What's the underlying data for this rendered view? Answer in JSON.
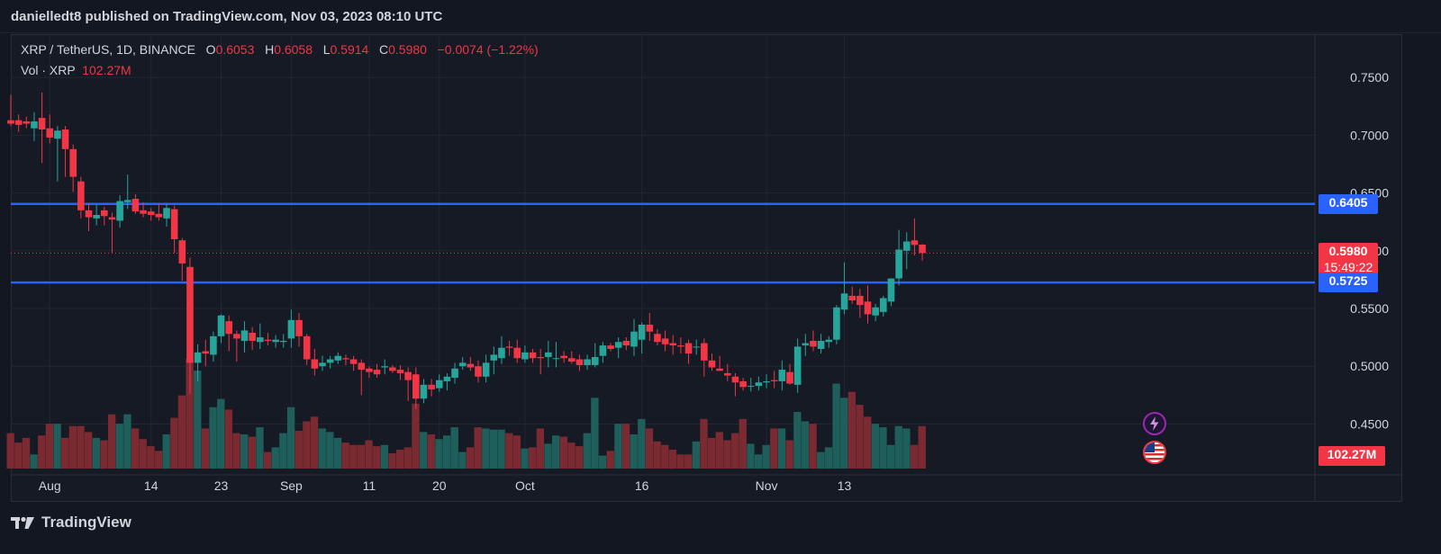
{
  "header": {
    "publish_text": "danielledt8 published on TradingView.com, Nov 03, 2023 08:10 UTC"
  },
  "legend": {
    "symbol": "XRP / TetherUS, 1D, BINANCE",
    "o_label": "O",
    "o_value": "0.6053",
    "h_label": "H",
    "h_value": "0.6058",
    "l_label": "L",
    "l_value": "0.5914",
    "c_label": "C",
    "c_value": "0.5980",
    "change": "−0.0074 (−1.22%)",
    "vol_label": "Vol · XRP",
    "vol_value": "102.27M"
  },
  "price_tags": {
    "resistance": "0.6405",
    "current_price": "0.5980",
    "countdown": "15:49:22",
    "support": "0.5725",
    "volume": "102.27M"
  },
  "footer": {
    "brand": "TradingView"
  },
  "icons": [
    "tradingview-logo-icon",
    "lightning-icon",
    "us-flag-icon"
  ],
  "colors": {
    "up": "#26a69a",
    "down": "#f23645",
    "level_line": "#2962ff",
    "up_volume": "#1f5f5b",
    "down_volume": "#7a2a30",
    "background": "#161a25"
  },
  "chart_data": {
    "type": "candlestick",
    "symbol": "XRP / TetherUS",
    "interval": "1D",
    "exchange": "BINANCE",
    "y_ticks": [
      "0.7500",
      "0.7000",
      "0.6500",
      "0.6000",
      "0.5500",
      "0.5000",
      "0.4500"
    ],
    "y_tick_values": [
      0.75,
      0.7,
      0.65,
      0.6,
      0.55,
      0.5,
      0.45
    ],
    "ylim": [
      0.4122,
      0.7875
    ],
    "x_ticks": [
      "Aug",
      "14",
      "23",
      "Sep",
      "11",
      "20",
      "Oct",
      "16",
      "Nov",
      "13"
    ],
    "x_tick_index": [
      5,
      18,
      27,
      36,
      46,
      55,
      66,
      81,
      97,
      107
    ],
    "levels": [
      {
        "price": 0.6405,
        "label": "0.6405"
      },
      {
        "price": 0.5725,
        "label": "0.5725"
      }
    ],
    "last_close": 0.598,
    "candles": [
      {
        "date": "2023-07-28",
        "o": 0.713,
        "h": 0.735,
        "l": 0.708,
        "c": 0.71,
        "v": 30
      },
      {
        "date": "2023-07-29",
        "o": 0.713,
        "h": 0.718,
        "l": 0.703,
        "c": 0.709,
        "v": 22
      },
      {
        "date": "2023-07-30",
        "o": 0.712,
        "h": 0.716,
        "l": 0.706,
        "c": 0.71,
        "v": 26
      },
      {
        "date": "2023-07-31",
        "o": 0.706,
        "h": 0.72,
        "l": 0.695,
        "c": 0.712,
        "v": 12
      },
      {
        "date": "2023-08-01",
        "o": 0.715,
        "h": 0.737,
        "l": 0.676,
        "c": 0.705,
        "v": 28
      },
      {
        "date": "2023-08-02",
        "o": 0.706,
        "h": 0.718,
        "l": 0.693,
        "c": 0.698,
        "v": 38
      },
      {
        "date": "2023-08-03",
        "o": 0.697,
        "h": 0.708,
        "l": 0.66,
        "c": 0.704,
        "v": 38
      },
      {
        "date": "2023-08-04",
        "o": 0.705,
        "h": 0.708,
        "l": 0.664,
        "c": 0.688,
        "v": 26
      },
      {
        "date": "2023-08-05",
        "o": 0.688,
        "h": 0.692,
        "l": 0.651,
        "c": 0.664,
        "v": 36
      },
      {
        "date": "2023-08-06",
        "o": 0.66,
        "h": 0.664,
        "l": 0.628,
        "c": 0.635,
        "v": 36
      },
      {
        "date": "2023-08-07",
        "o": 0.635,
        "h": 0.641,
        "l": 0.617,
        "c": 0.629,
        "v": 31
      },
      {
        "date": "2023-08-08",
        "o": 0.628,
        "h": 0.64,
        "l": 0.622,
        "c": 0.631,
        "v": 26
      },
      {
        "date": "2023-08-09",
        "o": 0.635,
        "h": 0.638,
        "l": 0.622,
        "c": 0.63,
        "v": 24
      },
      {
        "date": "2023-08-10",
        "o": 0.629,
        "h": 0.633,
        "l": 0.598,
        "c": 0.627,
        "v": 46
      },
      {
        "date": "2023-08-11",
        "o": 0.626,
        "h": 0.648,
        "l": 0.62,
        "c": 0.643,
        "v": 38
      },
      {
        "date": "2023-08-12",
        "o": 0.642,
        "h": 0.666,
        "l": 0.636,
        "c": 0.644,
        "v": 46
      },
      {
        "date": "2023-08-13",
        "o": 0.645,
        "h": 0.649,
        "l": 0.632,
        "c": 0.634,
        "v": 34
      },
      {
        "date": "2023-08-14",
        "o": 0.635,
        "h": 0.642,
        "l": 0.629,
        "c": 0.632,
        "v": 25
      },
      {
        "date": "2023-08-15",
        "o": 0.634,
        "h": 0.637,
        "l": 0.626,
        "c": 0.631,
        "v": 19
      },
      {
        "date": "2023-08-16",
        "o": 0.632,
        "h": 0.641,
        "l": 0.626,
        "c": 0.629,
        "v": 15
      },
      {
        "date": "2023-08-17",
        "o": 0.628,
        "h": 0.641,
        "l": 0.621,
        "c": 0.637,
        "v": 29
      },
      {
        "date": "2023-08-18",
        "o": 0.636,
        "h": 0.639,
        "l": 0.598,
        "c": 0.61,
        "v": 43
      },
      {
        "date": "2023-08-19",
        "o": 0.609,
        "h": 0.611,
        "l": 0.574,
        "c": 0.589,
        "v": 62
      },
      {
        "date": "2023-08-20",
        "o": 0.586,
        "h": 0.594,
        "l": 0.476,
        "c": 0.503,
        "v": 93
      },
      {
        "date": "2023-08-21",
        "o": 0.503,
        "h": 0.519,
        "l": 0.487,
        "c": 0.512,
        "v": 83
      },
      {
        "date": "2023-08-22",
        "o": 0.513,
        "h": 0.523,
        "l": 0.5,
        "c": 0.511,
        "v": 34
      },
      {
        "date": "2023-08-23",
        "o": 0.51,
        "h": 0.53,
        "l": 0.504,
        "c": 0.526,
        "v": 52
      },
      {
        "date": "2023-08-24",
        "o": 0.526,
        "h": 0.545,
        "l": 0.52,
        "c": 0.544,
        "v": 59
      },
      {
        "date": "2023-08-25",
        "o": 0.539,
        "h": 0.544,
        "l": 0.513,
        "c": 0.528,
        "v": 50
      },
      {
        "date": "2023-08-26",
        "o": 0.528,
        "h": 0.531,
        "l": 0.504,
        "c": 0.524,
        "v": 30
      },
      {
        "date": "2023-08-27",
        "o": 0.522,
        "h": 0.539,
        "l": 0.512,
        "c": 0.531,
        "v": 29
      },
      {
        "date": "2023-08-28",
        "o": 0.529,
        "h": 0.534,
        "l": 0.514,
        "c": 0.522,
        "v": 27
      },
      {
        "date": "2023-08-29",
        "o": 0.521,
        "h": 0.537,
        "l": 0.515,
        "c": 0.525,
        "v": 35
      },
      {
        "date": "2023-08-30",
        "o": 0.523,
        "h": 0.529,
        "l": 0.518,
        "c": 0.522,
        "v": 14
      },
      {
        "date": "2023-08-31",
        "o": 0.521,
        "h": 0.527,
        "l": 0.516,
        "c": 0.523,
        "v": 18
      },
      {
        "date": "2023-09-01",
        "o": 0.521,
        "h": 0.528,
        "l": 0.516,
        "c": 0.522,
        "v": 30
      },
      {
        "date": "2023-09-02",
        "o": 0.524,
        "h": 0.549,
        "l": 0.516,
        "c": 0.54,
        "v": 52
      },
      {
        "date": "2023-09-03",
        "o": 0.54,
        "h": 0.546,
        "l": 0.517,
        "c": 0.526,
        "v": 32
      },
      {
        "date": "2023-09-04",
        "o": 0.526,
        "h": 0.528,
        "l": 0.501,
        "c": 0.506,
        "v": 40
      },
      {
        "date": "2023-09-05",
        "o": 0.506,
        "h": 0.515,
        "l": 0.492,
        "c": 0.498,
        "v": 44
      },
      {
        "date": "2023-09-06",
        "o": 0.5,
        "h": 0.509,
        "l": 0.496,
        "c": 0.503,
        "v": 34
      },
      {
        "date": "2023-09-07",
        "o": 0.503,
        "h": 0.509,
        "l": 0.498,
        "c": 0.506,
        "v": 31
      },
      {
        "date": "2023-09-08",
        "o": 0.505,
        "h": 0.512,
        "l": 0.502,
        "c": 0.509,
        "v": 26
      },
      {
        "date": "2023-09-09",
        "o": 0.507,
        "h": 0.51,
        "l": 0.501,
        "c": 0.506,
        "v": 22
      },
      {
        "date": "2023-09-10",
        "o": 0.506,
        "h": 0.509,
        "l": 0.496,
        "c": 0.502,
        "v": 20
      },
      {
        "date": "2023-09-11",
        "o": 0.503,
        "h": 0.506,
        "l": 0.475,
        "c": 0.497,
        "v": 20
      },
      {
        "date": "2023-09-12",
        "o": 0.498,
        "h": 0.5,
        "l": 0.49,
        "c": 0.495,
        "v": 24
      },
      {
        "date": "2023-09-13",
        "o": 0.497,
        "h": 0.502,
        "l": 0.49,
        "c": 0.493,
        "v": 19
      },
      {
        "date": "2023-09-14",
        "o": 0.499,
        "h": 0.506,
        "l": 0.493,
        "c": 0.5,
        "v": 20
      },
      {
        "date": "2023-09-15",
        "o": 0.499,
        "h": 0.501,
        "l": 0.494,
        "c": 0.496,
        "v": 13
      },
      {
        "date": "2023-09-16",
        "o": 0.497,
        "h": 0.501,
        "l": 0.488,
        "c": 0.494,
        "v": 16
      },
      {
        "date": "2023-09-17",
        "o": 0.495,
        "h": 0.499,
        "l": 0.47,
        "c": 0.488,
        "v": 18
      },
      {
        "date": "2023-09-18",
        "o": 0.493,
        "h": 0.499,
        "l": 0.463,
        "c": 0.472,
        "v": 55
      },
      {
        "date": "2023-09-19",
        "o": 0.472,
        "h": 0.489,
        "l": 0.468,
        "c": 0.484,
        "v": 31
      },
      {
        "date": "2023-09-20",
        "o": 0.484,
        "h": 0.489,
        "l": 0.474,
        "c": 0.48,
        "v": 29
      },
      {
        "date": "2023-09-21",
        "o": 0.481,
        "h": 0.493,
        "l": 0.478,
        "c": 0.488,
        "v": 25
      },
      {
        "date": "2023-09-22",
        "o": 0.487,
        "h": 0.494,
        "l": 0.479,
        "c": 0.491,
        "v": 28
      },
      {
        "date": "2023-09-23",
        "o": 0.49,
        "h": 0.503,
        "l": 0.485,
        "c": 0.498,
        "v": 35
      },
      {
        "date": "2023-09-24",
        "o": 0.5,
        "h": 0.508,
        "l": 0.497,
        "c": 0.503,
        "v": 14
      },
      {
        "date": "2023-09-25",
        "o": 0.502,
        "h": 0.508,
        "l": 0.496,
        "c": 0.499,
        "v": 18
      },
      {
        "date": "2023-09-26",
        "o": 0.5,
        "h": 0.505,
        "l": 0.486,
        "c": 0.491,
        "v": 35
      },
      {
        "date": "2023-09-27",
        "o": 0.491,
        "h": 0.51,
        "l": 0.486,
        "c": 0.503,
        "v": 34
      },
      {
        "date": "2023-09-28",
        "o": 0.505,
        "h": 0.517,
        "l": 0.493,
        "c": 0.51,
        "v": 33
      },
      {
        "date": "2023-09-29",
        "o": 0.507,
        "h": 0.526,
        "l": 0.502,
        "c": 0.516,
        "v": 33
      },
      {
        "date": "2023-09-30",
        "o": 0.517,
        "h": 0.522,
        "l": 0.509,
        "c": 0.516,
        "v": 30
      },
      {
        "date": "2023-10-01",
        "o": 0.516,
        "h": 0.523,
        "l": 0.503,
        "c": 0.507,
        "v": 28
      },
      {
        "date": "2023-10-02",
        "o": 0.506,
        "h": 0.518,
        "l": 0.503,
        "c": 0.512,
        "v": 17
      },
      {
        "date": "2023-10-03",
        "o": 0.512,
        "h": 0.515,
        "l": 0.503,
        "c": 0.507,
        "v": 18
      },
      {
        "date": "2023-10-04",
        "o": 0.508,
        "h": 0.515,
        "l": 0.493,
        "c": 0.507,
        "v": 34
      },
      {
        "date": "2023-10-05",
        "o": 0.508,
        "h": 0.522,
        "l": 0.499,
        "c": 0.512,
        "v": 21
      },
      {
        "date": "2023-10-06",
        "o": 0.507,
        "h": 0.521,
        "l": 0.499,
        "c": 0.507,
        "v": 28
      },
      {
        "date": "2023-10-07",
        "o": 0.509,
        "h": 0.513,
        "l": 0.503,
        "c": 0.507,
        "v": 27
      },
      {
        "date": "2023-10-08",
        "o": 0.507,
        "h": 0.513,
        "l": 0.502,
        "c": 0.504,
        "v": 22
      },
      {
        "date": "2023-10-09",
        "o": 0.506,
        "h": 0.51,
        "l": 0.496,
        "c": 0.501,
        "v": 19
      },
      {
        "date": "2023-10-10",
        "o": 0.501,
        "h": 0.51,
        "l": 0.497,
        "c": 0.506,
        "v": 30
      },
      {
        "date": "2023-10-11",
        "o": 0.501,
        "h": 0.52,
        "l": 0.499,
        "c": 0.508,
        "v": 60
      },
      {
        "date": "2023-10-12",
        "o": 0.509,
        "h": 0.521,
        "l": 0.503,
        "c": 0.518,
        "v": 11
      },
      {
        "date": "2023-10-13",
        "o": 0.518,
        "h": 0.52,
        "l": 0.513,
        "c": 0.515,
        "v": 15
      },
      {
        "date": "2023-10-14",
        "o": 0.516,
        "h": 0.525,
        "l": 0.507,
        "c": 0.521,
        "v": 38
      },
      {
        "date": "2023-10-15",
        "o": 0.522,
        "h": 0.525,
        "l": 0.514,
        "c": 0.518,
        "v": 38
      },
      {
        "date": "2023-10-16",
        "o": 0.517,
        "h": 0.541,
        "l": 0.509,
        "c": 0.53,
        "v": 29
      },
      {
        "date": "2023-10-17",
        "o": 0.523,
        "h": 0.538,
        "l": 0.511,
        "c": 0.536,
        "v": 42
      },
      {
        "date": "2023-10-18",
        "o": 0.536,
        "h": 0.546,
        "l": 0.522,
        "c": 0.53,
        "v": 34
      },
      {
        "date": "2023-10-19",
        "o": 0.528,
        "h": 0.532,
        "l": 0.518,
        "c": 0.521,
        "v": 23
      },
      {
        "date": "2023-10-20",
        "o": 0.524,
        "h": 0.531,
        "l": 0.513,
        "c": 0.519,
        "v": 20
      },
      {
        "date": "2023-10-21",
        "o": 0.52,
        "h": 0.527,
        "l": 0.51,
        "c": 0.518,
        "v": 16
      },
      {
        "date": "2023-10-22",
        "o": 0.518,
        "h": 0.525,
        "l": 0.511,
        "c": 0.517,
        "v": 12
      },
      {
        "date": "2023-10-23",
        "o": 0.52,
        "h": 0.523,
        "l": 0.502,
        "c": 0.511,
        "v": 12
      },
      {
        "date": "2023-10-24",
        "o": 0.517,
        "h": 0.523,
        "l": 0.51,
        "c": 0.517,
        "v": 23
      },
      {
        "date": "2023-10-25",
        "o": 0.52,
        "h": 0.524,
        "l": 0.491,
        "c": 0.505,
        "v": 42
      },
      {
        "date": "2023-10-26",
        "o": 0.505,
        "h": 0.511,
        "l": 0.496,
        "c": 0.499,
        "v": 26
      },
      {
        "date": "2023-10-27",
        "o": 0.498,
        "h": 0.509,
        "l": 0.497,
        "c": 0.496,
        "v": 31
      },
      {
        "date": "2023-10-28",
        "o": 0.494,
        "h": 0.502,
        "l": 0.487,
        "c": 0.492,
        "v": 24
      },
      {
        "date": "2023-10-29",
        "o": 0.491,
        "h": 0.494,
        "l": 0.474,
        "c": 0.486,
        "v": 30
      },
      {
        "date": "2023-10-30",
        "o": 0.487,
        "h": 0.49,
        "l": 0.479,
        "c": 0.482,
        "v": 42
      },
      {
        "date": "2023-10-31",
        "o": 0.483,
        "h": 0.49,
        "l": 0.478,
        "c": 0.483,
        "v": 21
      },
      {
        "date": "2023-11-01",
        "o": 0.483,
        "h": 0.491,
        "l": 0.479,
        "c": 0.486,
        "v": 12
      },
      {
        "date": "2023-11-02",
        "o": 0.486,
        "h": 0.493,
        "l": 0.481,
        "c": 0.487,
        "v": 20
      },
      {
        "date": "2023-11-03",
        "o": 0.488,
        "h": 0.496,
        "l": 0.481,
        "c": 0.487,
        "v": 34
      },
      {
        "date": "2023-11-04",
        "o": 0.487,
        "h": 0.505,
        "l": 0.479,
        "c": 0.497,
        "v": 34
      },
      {
        "date": "2023-11-05",
        "o": 0.495,
        "h": 0.502,
        "l": 0.484,
        "c": 0.485,
        "v": 24
      },
      {
        "date": "2023-11-06",
        "o": 0.484,
        "h": 0.524,
        "l": 0.477,
        "c": 0.517,
        "v": 48
      },
      {
        "date": "2023-11-07",
        "o": 0.518,
        "h": 0.528,
        "l": 0.509,
        "c": 0.52,
        "v": 40
      },
      {
        "date": "2023-11-08",
        "o": 0.522,
        "h": 0.531,
        "l": 0.513,
        "c": 0.517,
        "v": 38
      },
      {
        "date": "2023-11-09",
        "o": 0.515,
        "h": 0.528,
        "l": 0.511,
        "c": 0.522,
        "v": 14
      },
      {
        "date": "2023-11-10",
        "o": 0.521,
        "h": 0.526,
        "l": 0.516,
        "c": 0.523,
        "v": 18
      },
      {
        "date": "2023-11-11",
        "o": 0.523,
        "h": 0.553,
        "l": 0.519,
        "c": 0.551,
        "v": 72
      },
      {
        "date": "2023-11-12",
        "o": 0.549,
        "h": 0.59,
        "l": 0.545,
        "c": 0.563,
        "v": 60
      },
      {
        "date": "2023-11-13",
        "o": 0.561,
        "h": 0.569,
        "l": 0.554,
        "c": 0.557,
        "v": 65
      },
      {
        "date": "2023-11-14",
        "o": 0.561,
        "h": 0.567,
        "l": 0.542,
        "c": 0.553,
        "v": 54
      },
      {
        "date": "2023-11-15",
        "o": 0.556,
        "h": 0.57,
        "l": 0.537,
        "c": 0.545,
        "v": 44
      },
      {
        "date": "2023-11-16",
        "o": 0.544,
        "h": 0.554,
        "l": 0.539,
        "c": 0.551,
        "v": 38
      },
      {
        "date": "2023-11-17",
        "o": 0.547,
        "h": 0.561,
        "l": 0.543,
        "c": 0.559,
        "v": 35
      },
      {
        "date": "2023-11-18",
        "o": 0.556,
        "h": 0.576,
        "l": 0.552,
        "c": 0.576,
        "v": 20
      },
      {
        "date": "2023-11-19",
        "o": 0.576,
        "h": 0.618,
        "l": 0.57,
        "c": 0.601,
        "v": 36
      },
      {
        "date": "2023-11-20",
        "o": 0.6,
        "h": 0.616,
        "l": 0.584,
        "c": 0.608,
        "v": 34
      },
      {
        "date": "2023-11-21",
        "o": 0.609,
        "h": 0.628,
        "l": 0.596,
        "c": 0.605,
        "v": 20
      },
      {
        "date": "2023-11-22",
        "o": 0.6053,
        "h": 0.6058,
        "l": 0.5914,
        "c": 0.598,
        "v": 36
      }
    ]
  }
}
